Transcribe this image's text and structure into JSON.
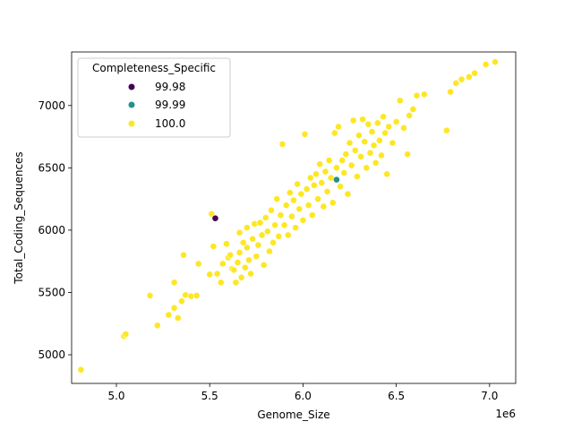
{
  "chart_data": {
    "type": "scatter",
    "xlabel": "Genome_Size",
    "ylabel": "Total_Coding_Sequences",
    "x_offset_label": "1e6",
    "xlim": [
      4.76,
      7.14
    ],
    "ylim": [
      4770,
      7430
    ],
    "x_ticks": [
      5.0,
      5.5,
      6.0,
      6.5,
      7.0
    ],
    "x_tick_labels": [
      "5.0",
      "5.5",
      "6.0",
      "6.5",
      "7.0"
    ],
    "y_ticks": [
      5000,
      5500,
      6000,
      6500,
      7000
    ],
    "y_tick_labels": [
      "5000",
      "5500",
      "6000",
      "6500",
      "7000"
    ],
    "grid": false,
    "legend": {
      "title": "Completeness_Specific",
      "position": "top-left",
      "entries": [
        {
          "label": "99.98",
          "color": "#440154"
        },
        {
          "label": "99.99",
          "color": "#21918c"
        },
        {
          "label": "100.0",
          "color": "#fde725"
        }
      ]
    },
    "series": [
      {
        "name": "99.98",
        "color": "#440154",
        "points": [
          [
            5.53,
            6095
          ]
        ]
      },
      {
        "name": "99.99",
        "color": "#21918c",
        "points": [
          [
            6.18,
            6405
          ]
        ]
      },
      {
        "name": "100.0",
        "color": "#fde725",
        "points": [
          [
            4.81,
            4880
          ],
          [
            5.04,
            5150
          ],
          [
            5.05,
            5165
          ],
          [
            5.18,
            5475
          ],
          [
            5.22,
            5235
          ],
          [
            5.28,
            5320
          ],
          [
            5.31,
            5375
          ],
          [
            5.31,
            5580
          ],
          [
            5.33,
            5295
          ],
          [
            5.35,
            5430
          ],
          [
            5.37,
            5480
          ],
          [
            5.36,
            5800
          ],
          [
            5.4,
            5470
          ],
          [
            5.43,
            5475
          ],
          [
            5.44,
            5730
          ],
          [
            5.5,
            5645
          ],
          [
            5.51,
            6130
          ],
          [
            5.52,
            5870
          ],
          [
            5.54,
            5650
          ],
          [
            5.56,
            5580
          ],
          [
            5.57,
            5730
          ],
          [
            5.59,
            5890
          ],
          [
            5.6,
            5780
          ],
          [
            5.61,
            5800
          ],
          [
            5.62,
            5690
          ],
          [
            5.63,
            5680
          ],
          [
            5.64,
            5580
          ],
          [
            5.65,
            5740
          ],
          [
            5.66,
            5820
          ],
          [
            5.66,
            5980
          ],
          [
            5.67,
            5620
          ],
          [
            5.68,
            5900
          ],
          [
            5.69,
            5700
          ],
          [
            5.7,
            5860
          ],
          [
            5.7,
            6020
          ],
          [
            5.71,
            5760
          ],
          [
            5.72,
            5650
          ],
          [
            5.73,
            5930
          ],
          [
            5.74,
            6050
          ],
          [
            5.75,
            5790
          ],
          [
            5.76,
            5880
          ],
          [
            5.77,
            6060
          ],
          [
            5.78,
            5960
          ],
          [
            5.79,
            5720
          ],
          [
            5.8,
            6100
          ],
          [
            5.81,
            5990
          ],
          [
            5.82,
            5830
          ],
          [
            5.83,
            6160
          ],
          [
            5.84,
            5900
          ],
          [
            5.85,
            6040
          ],
          [
            5.86,
            6250
          ],
          [
            5.87,
            5950
          ],
          [
            5.88,
            6120
          ],
          [
            5.89,
            6690
          ],
          [
            5.9,
            6040
          ],
          [
            5.91,
            6200
          ],
          [
            5.92,
            5960
          ],
          [
            5.93,
            6300
          ],
          [
            5.94,
            6110
          ],
          [
            5.95,
            6240
          ],
          [
            5.96,
            6020
          ],
          [
            5.97,
            6370
          ],
          [
            5.98,
            6170
          ],
          [
            5.99,
            6290
          ],
          [
            6.0,
            6080
          ],
          [
            6.01,
            6770
          ],
          [
            6.02,
            6330
          ],
          [
            6.03,
            6200
          ],
          [
            6.04,
            6420
          ],
          [
            6.05,
            6120
          ],
          [
            6.06,
            6360
          ],
          [
            6.07,
            6450
          ],
          [
            6.08,
            6250
          ],
          [
            6.09,
            6530
          ],
          [
            6.1,
            6380
          ],
          [
            6.11,
            6190
          ],
          [
            6.12,
            6470
          ],
          [
            6.13,
            6310
          ],
          [
            6.14,
            6560
          ],
          [
            6.15,
            6420
          ],
          [
            6.16,
            6220
          ],
          [
            6.17,
            6780
          ],
          [
            6.18,
            6500
          ],
          [
            6.19,
            6830
          ],
          [
            6.2,
            6350
          ],
          [
            6.21,
            6560
          ],
          [
            6.22,
            6460
          ],
          [
            6.23,
            6610
          ],
          [
            6.24,
            6290
          ],
          [
            6.25,
            6700
          ],
          [
            6.26,
            6520
          ],
          [
            6.27,
            6880
          ],
          [
            6.28,
            6640
          ],
          [
            6.29,
            6430
          ],
          [
            6.3,
            6760
          ],
          [
            6.31,
            6590
          ],
          [
            6.32,
            6890
          ],
          [
            6.33,
            6710
          ],
          [
            6.34,
            6500
          ],
          [
            6.35,
            6850
          ],
          [
            6.36,
            6620
          ],
          [
            6.37,
            6790
          ],
          [
            6.38,
            6680
          ],
          [
            6.39,
            6540
          ],
          [
            6.4,
            6860
          ],
          [
            6.41,
            6720
          ],
          [
            6.42,
            6600
          ],
          [
            6.43,
            6910
          ],
          [
            6.44,
            6780
          ],
          [
            6.45,
            6450
          ],
          [
            6.46,
            6830
          ],
          [
            6.48,
            6700
          ],
          [
            6.5,
            6870
          ],
          [
            6.52,
            7040
          ],
          [
            6.54,
            6820
          ],
          [
            6.56,
            6610
          ],
          [
            6.57,
            6920
          ],
          [
            6.59,
            6970
          ],
          [
            6.61,
            7080
          ],
          [
            6.65,
            7090
          ],
          [
            6.77,
            6800
          ],
          [
            6.79,
            7110
          ],
          [
            6.82,
            7180
          ],
          [
            6.85,
            7210
          ],
          [
            6.89,
            7230
          ],
          [
            6.92,
            7260
          ],
          [
            6.98,
            7330
          ],
          [
            7.03,
            7350
          ]
        ]
      }
    ]
  }
}
